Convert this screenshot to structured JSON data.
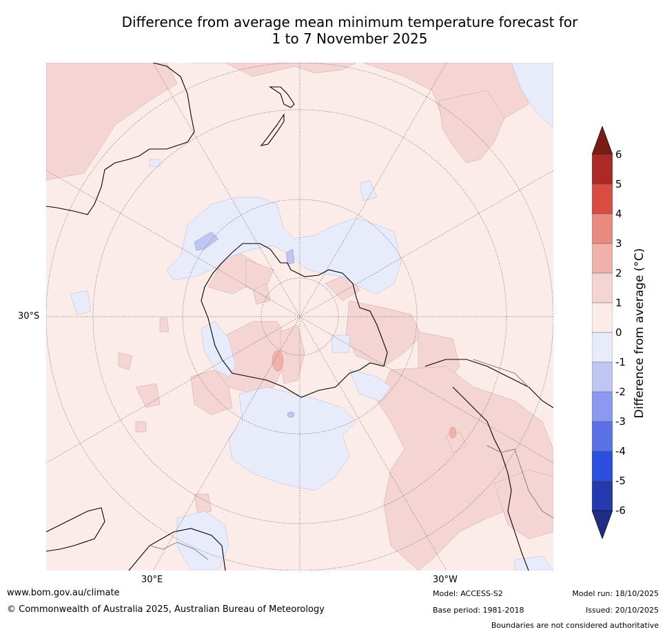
{
  "title_line1": "Difference from average mean minimum temperature forecast for",
  "title_line2": "1 to 7 November 2025",
  "map": {
    "projection": "south polar stereographic",
    "grid_labels": {
      "lat_30s": "30°S",
      "lon_30e": "30°E",
      "lon_30w": "30°W"
    },
    "land_outline_color": "#000000",
    "boundary_color": "#808080"
  },
  "colorbar": {
    "label": "Difference from average (°C)",
    "ticks": [
      "6",
      "5",
      "4",
      "3",
      "2",
      "1",
      "0",
      "-1",
      "-2",
      "-3",
      "-4",
      "-5",
      "-6"
    ],
    "bins_top_to_bottom": [
      {
        "range": "5 to 6",
        "color": "#ac2a25"
      },
      {
        "range": "4 to 5",
        "color": "#d94c42"
      },
      {
        "range": "3 to 4",
        "color": "#e98a80"
      },
      {
        "range": "2 to 3",
        "color": "#f0b1aa"
      },
      {
        "range": "1 to 2",
        "color": "#f4d5d3"
      },
      {
        "range": "0 to 1",
        "color": "#fbecea"
      },
      {
        "range": "-1 to 0",
        "color": "#e8ebfa"
      },
      {
        "range": "-2 to -1",
        "color": "#bfc6f2"
      },
      {
        "range": "-3 to -2",
        "color": "#8b9af0"
      },
      {
        "range": "-4 to -3",
        "color": "#5a72e6"
      },
      {
        "range": "-5 to -4",
        "color": "#2d4fe0"
      },
      {
        "range": "-6 to -5",
        "color": "#253aae"
      }
    ],
    "over_color": "#7a1b16",
    "under_color": "#1f2d84"
  },
  "footer": {
    "website": "www.bom.gov.au/climate",
    "copyright": "© Commonwealth of Australia 2025, Australian Bureau of Meteorology",
    "model": "Model: ACCESS-S2",
    "base_period": "Base period: 1981-2018",
    "model_run": "Model run: 18/10/2025",
    "issued": "Issued: 20/10/2025",
    "disclaimer": "Boundaries are not considered authoritative"
  }
}
